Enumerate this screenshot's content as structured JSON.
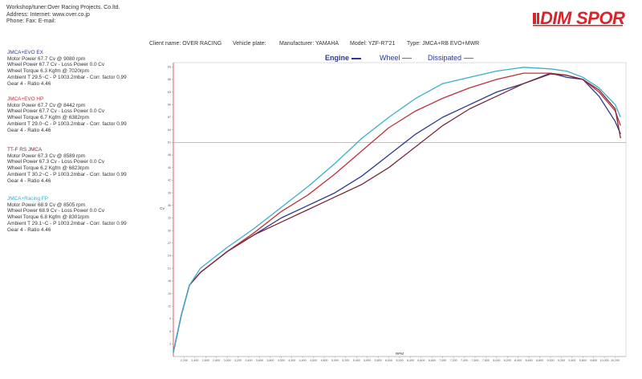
{
  "header": {
    "line1": "Workshop/tuner:Over Racing Projects. Co.ltd.",
    "line2": "Address:  Internet: www.over.co.jp",
    "line3": "Phone:  Fax:  E-mail:"
  },
  "logo": {
    "part1": "DIM",
    "part2": "SPORT"
  },
  "info": {
    "client": "Client name: OVER RACING",
    "plate": "Vehicle plate:",
    "manufacturer": "Manufacturer: YAMAHA",
    "model": "Model: YZF-R7'21",
    "type": "Type: JMCA+RB EVO+MWR"
  },
  "legend": {
    "engine": "Engine",
    "wheel": "Wheel",
    "dissipated": "Dissipated"
  },
  "runs": [
    {
      "name": "JMCA+EVO EX",
      "color": "#2d3a8c",
      "lines": [
        "Motor Power 67.7 Cv   @ 9080 rpm",
        "Wheel Power 67.7 Cv  - Loss Power 0.0 Cv",
        "Wheel Torque 6.3 Kgfm   @ 7020rpm",
        "Ambient T 29.5~C - P 1003.2mbar - Corr. factor 0.99",
        "Gear 4 - Ratio 4.46"
      ]
    },
    {
      "name": "JMCA+EVO HP",
      "color": "#c0303a",
      "lines": [
        "Motor Power 67.7 Cv   @ 8442 rpm",
        "Wheel Power 67.7 Cv  - Loss Power 0.0 Cv",
        "Wheel Torque 6.7 Kgfm   @ 6382rpm",
        "Ambient T 29.0~C - P 1003.2mbar - Corr. factor 0.99",
        "Gear 4 - Ratio 4.46"
      ]
    },
    {
      "name": "TT-F RS JMCA",
      "color": "#7a2a36",
      "lines": [
        "Motor Power 67.3 Cv   @ 8589 rpm",
        "Wheel Power 67.3 Cv  - Loss Power 0.0 Cv",
        "Wheel Torque 6.2 Kgfm   @ 6823rpm",
        "Ambient T 30.2~C - P 1003.2mbar - Corr. factor 0.99",
        "Gear 4 - Ratio 4.46"
      ]
    },
    {
      "name": "JMCA+Racing FP",
      "color": "#3aaed0",
      "lines": [
        "Motor Power 68.9 Cv   @ 8505 rpm",
        "Wheel Power 68.9 Cv  - Loss Power 0.0 Cv",
        "Wheel Torque 6.8 Kgfm   @ 8301rpm",
        "Ambient T 29.1~C - P 1003.2mbar - Corr. factor 0.99",
        "Gear 4 - Ratio 4.46"
      ]
    }
  ],
  "chart_data": {
    "type": "line",
    "xlabel": "RPM",
    "ylabel": "Cv",
    "xlim": [
      2000,
      10400
    ],
    "ylim": [
      0,
      70
    ],
    "x_ticks": [
      "2,200",
      "2,400",
      "2,600",
      "2,800",
      "3,000",
      "3,200",
      "3,400",
      "3,600",
      "3,800",
      "4,000",
      "4,200",
      "4,400",
      "4,600",
      "4,800",
      "5,000",
      "5,200",
      "5,400",
      "5,600",
      "5,800",
      "6,000",
      "6,200",
      "6,400",
      "6,600",
      "6,800",
      "7,000",
      "7,200",
      "7,400",
      "7,600",
      "7,800",
      "8,000",
      "8,200",
      "8,400",
      "8,600",
      "8,800",
      "9,000",
      "9,200",
      "9,400",
      "9,600",
      "9,800",
      "10,000",
      "10,200"
    ],
    "y_ticks": [
      3,
      6,
      9,
      12,
      15,
      18,
      21,
      24,
      27,
      30,
      33,
      36,
      39,
      42,
      45,
      48,
      51,
      54,
      57,
      60,
      63,
      66,
      69
    ],
    "reference_line": 51,
    "series": [
      {
        "name": "JMCA+EVO EX",
        "color": "#2d3a8c",
        "x": [
          2000,
          2150,
          2300,
          2500,
          2800,
          3000,
          3500,
          4000,
          4500,
          5000,
          5500,
          6000,
          6500,
          7000,
          7500,
          8000,
          8500,
          9000,
          9300,
          9600,
          9900,
          10200,
          10300
        ],
        "y": [
          1,
          10,
          17,
          20,
          23,
          25,
          29,
          33,
          36,
          39,
          43,
          48,
          53,
          57,
          60,
          63,
          65,
          67.5,
          66.5,
          66,
          62,
          56,
          53
        ]
      },
      {
        "name": "JMCA+EVO HP",
        "color": "#c0303a",
        "x": [
          2000,
          2150,
          2300,
          2500,
          2800,
          3000,
          3500,
          4000,
          4500,
          5000,
          5500,
          6000,
          6500,
          7000,
          7500,
          8000,
          8500,
          9000,
          9300,
          9600,
          9900,
          10200,
          10300
        ],
        "y": [
          1,
          10,
          17,
          20,
          23,
          25,
          29.5,
          34.5,
          38.5,
          43.5,
          49,
          54.5,
          58.5,
          61.5,
          64,
          66,
          67.5,
          67.5,
          67,
          66,
          63,
          58.5,
          55
        ]
      },
      {
        "name": "TT-F RS JMCA",
        "color": "#7a2a36",
        "x": [
          2000,
          2150,
          2300,
          2500,
          2800,
          3000,
          3500,
          4000,
          4500,
          5000,
          5500,
          6000,
          6500,
          7000,
          7500,
          8000,
          8500,
          9000,
          9300,
          9600,
          9900,
          10200,
          10300
        ],
        "y": [
          1,
          10,
          17,
          20,
          23,
          25,
          29,
          32,
          35,
          38,
          41,
          45,
          50,
          55,
          59,
          62,
          65,
          67.3,
          67,
          66,
          63.5,
          59,
          52
        ]
      },
      {
        "name": "JMCA+Racing FP",
        "color": "#3aaed0",
        "x": [
          2000,
          2150,
          2300,
          2500,
          2800,
          3000,
          3500,
          4000,
          4500,
          5000,
          5500,
          6000,
          6500,
          7000,
          7500,
          8000,
          8500,
          9000,
          9300,
          9600,
          9900,
          10200,
          10300
        ],
        "y": [
          1,
          10,
          17,
          21,
          24,
          26,
          30.5,
          35.5,
          40.5,
          46,
          52,
          57,
          61.5,
          65,
          66.5,
          68,
          68.9,
          68.5,
          68,
          66.5,
          64,
          60,
          57
        ]
      }
    ]
  }
}
